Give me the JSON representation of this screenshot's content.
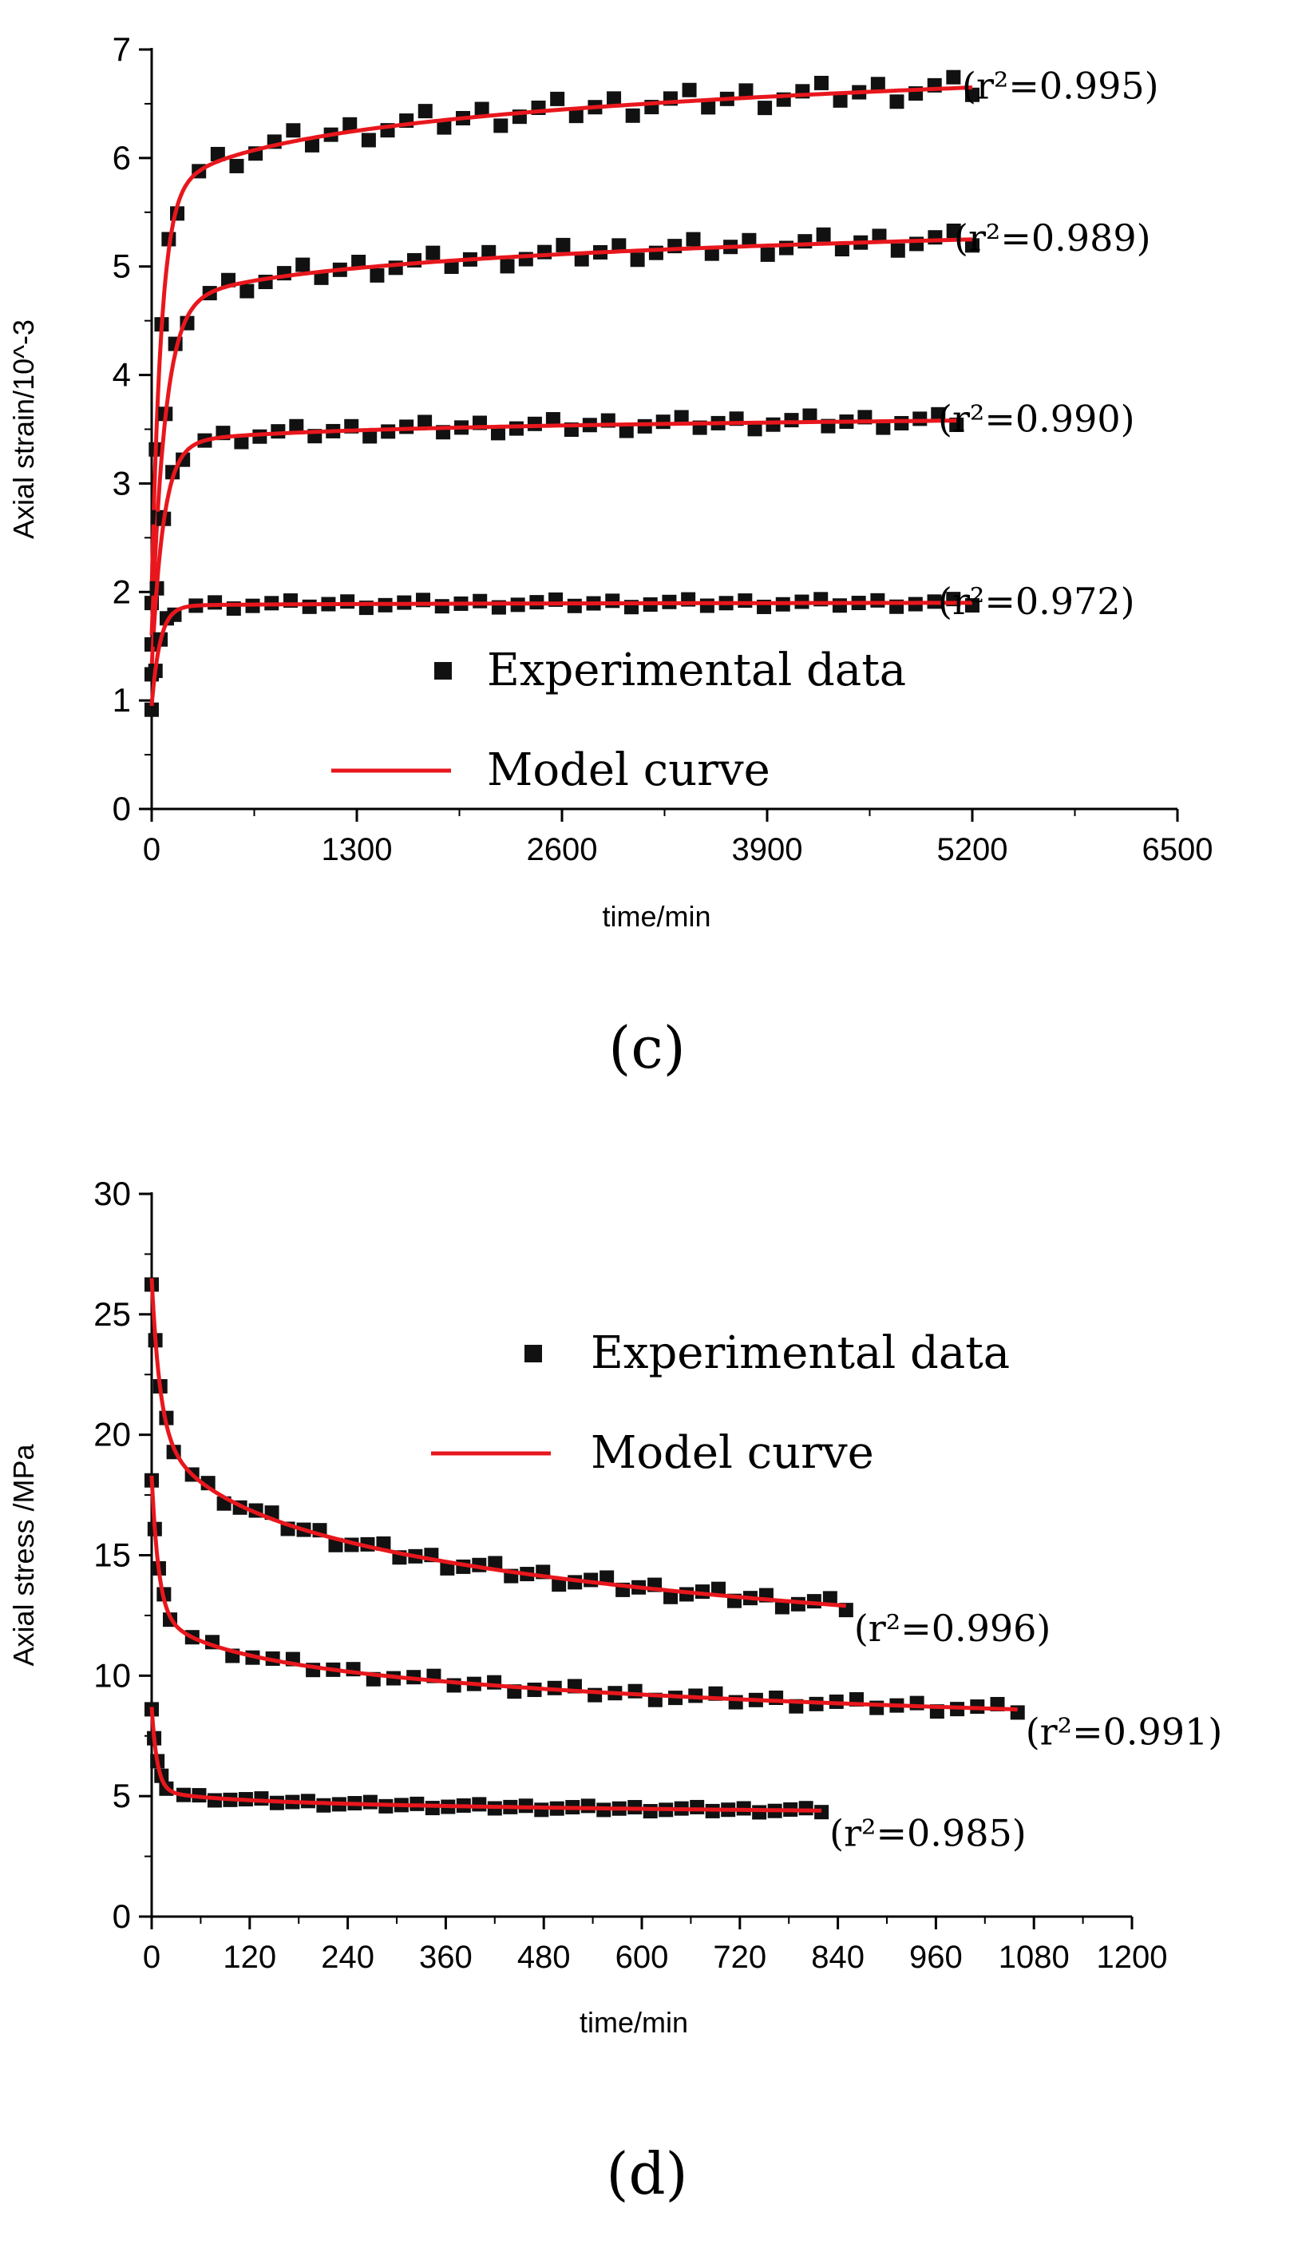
{
  "colors": {
    "model": "#e8171d",
    "marker": "#111111",
    "axis": "#000000"
  },
  "charts": [
    {
      "panel_label": "(c)",
      "axis_title_x": "time/min",
      "axis_title_y": "Axial strain/10^-3",
      "legend": {
        "experimental": "Experimental data",
        "model": "Model curve"
      },
      "annotations": [
        "(r²=0.995)",
        "(r²=0.989)",
        "(r²=0.990)",
        "(r²=0.972)"
      ]
    },
    {
      "panel_label": "(d)",
      "axis_title_x": "time/min",
      "axis_title_y": "Axial stress /MPa",
      "legend": {
        "experimental": "Experimental data",
        "model": "Model curve"
      },
      "annotations": [
        "(r²=0.996)",
        "(r²=0.991)",
        "(r²=0.985)"
      ]
    }
  ],
  "chart_data": [
    {
      "type": "scatter",
      "title": "(c)",
      "xlabel": "time/min",
      "ylabel": "Axial strain/10^-3",
      "xlim": [
        0,
        6500
      ],
      "ylim": [
        0,
        7
      ],
      "xticks": [
        0,
        1300,
        2600,
        3900,
        5200,
        6500
      ],
      "yticks": [
        0,
        1,
        2,
        3,
        4,
        5,
        6,
        7
      ],
      "legend_position": "bottom-center",
      "series": [
        {
          "name": "Experimental data",
          "start": 2.0,
          "knee_t": 180,
          "knee_y": 5.6,
          "end_t": 5200,
          "end_y": 6.65,
          "annotation": "(r²=0.995)"
        },
        {
          "name": "Experimental data",
          "start": 1.6,
          "knee_t": 250,
          "knee_y": 4.6,
          "end_t": 5200,
          "end_y": 5.25,
          "annotation": "(r²=0.989)"
        },
        {
          "name": "Experimental data",
          "start": 1.3,
          "knee_t": 220,
          "knee_y": 3.35,
          "end_t": 5100,
          "end_y": 3.58,
          "annotation": "(r²=0.990)"
        },
        {
          "name": "Experimental data",
          "start": 0.95,
          "knee_t": 160,
          "knee_y": 1.87,
          "end_t": 5200,
          "end_y": 1.9,
          "annotation": "(r²=0.972)"
        }
      ]
    },
    {
      "type": "scatter",
      "title": "(d)",
      "xlabel": "time/min",
      "ylabel": "Axial stress /MPa",
      "xlim": [
        0,
        1200
      ],
      "ylim": [
        0,
        30
      ],
      "xticks": [
        0,
        120,
        240,
        360,
        480,
        600,
        720,
        840,
        960,
        1080,
        1200
      ],
      "yticks": [
        0,
        5,
        10,
        15,
        20,
        25,
        30
      ],
      "legend_position": "top-center",
      "series": [
        {
          "name": "Experimental data",
          "start": 26.5,
          "knee_t": 30,
          "knee_y": 20.5,
          "end_t": 850,
          "end_y": 12.9,
          "annotation": "(r²=0.996)"
        },
        {
          "name": "Experimental data",
          "start": 18.3,
          "knee_t": 25,
          "knee_y": 12.8,
          "end_t": 1060,
          "end_y": 8.6,
          "annotation": "(r²=0.991)"
        },
        {
          "name": "Experimental data",
          "start": 8.7,
          "knee_t": 20,
          "knee_y": 5.3,
          "end_t": 820,
          "end_y": 4.4,
          "annotation": "(r²=0.985)"
        }
      ]
    }
  ]
}
